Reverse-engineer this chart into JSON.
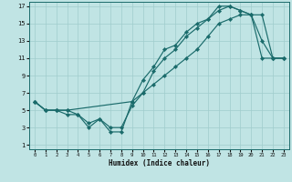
{
  "title": "",
  "xlabel": "Humidex (Indice chaleur)",
  "bg_color": "#c0e4e4",
  "grid_color": "#a0cccc",
  "line_color": "#1a6b6b",
  "xlim": [
    -0.5,
    23.5
  ],
  "ylim": [
    0.5,
    17.5
  ],
  "xticks": [
    0,
    1,
    2,
    3,
    4,
    5,
    6,
    7,
    8,
    9,
    10,
    11,
    12,
    13,
    14,
    15,
    16,
    17,
    18,
    19,
    20,
    21,
    22,
    23
  ],
  "yticks": [
    1,
    3,
    5,
    7,
    9,
    11,
    13,
    15,
    17
  ],
  "line1_x": [
    0,
    1,
    2,
    3,
    4,
    5,
    6,
    7,
    8,
    9,
    10,
    11,
    12,
    13,
    14,
    15,
    16,
    17,
    18,
    19,
    20,
    21,
    22,
    23
  ],
  "line1_y": [
    6,
    5,
    5,
    5,
    4.5,
    3,
    4,
    2.5,
    2.5,
    6,
    8.5,
    10,
    12,
    12.5,
    14,
    15,
    15.5,
    16.5,
    17,
    16.5,
    16,
    11,
    11,
    11
  ],
  "line2_x": [
    0,
    1,
    2,
    3,
    4,
    5,
    6,
    7,
    8,
    9,
    10,
    11,
    12,
    13,
    14,
    15,
    16,
    17,
    18,
    19,
    20,
    21,
    22,
    23
  ],
  "line2_y": [
    6,
    5,
    5,
    4.5,
    4.5,
    3.5,
    4,
    3,
    3,
    5.5,
    7,
    9.5,
    11,
    12,
    13.5,
    14.5,
    15.5,
    17,
    17,
    16.5,
    16,
    13,
    11,
    11
  ],
  "line3_x": [
    0,
    1,
    2,
    3,
    9,
    10,
    11,
    12,
    13,
    14,
    15,
    16,
    17,
    18,
    19,
    20,
    21,
    22,
    23
  ],
  "line3_y": [
    6,
    5,
    5,
    5,
    6,
    7,
    8,
    9,
    10,
    11,
    12,
    13.5,
    15,
    15.5,
    16,
    16,
    16,
    11,
    11
  ]
}
